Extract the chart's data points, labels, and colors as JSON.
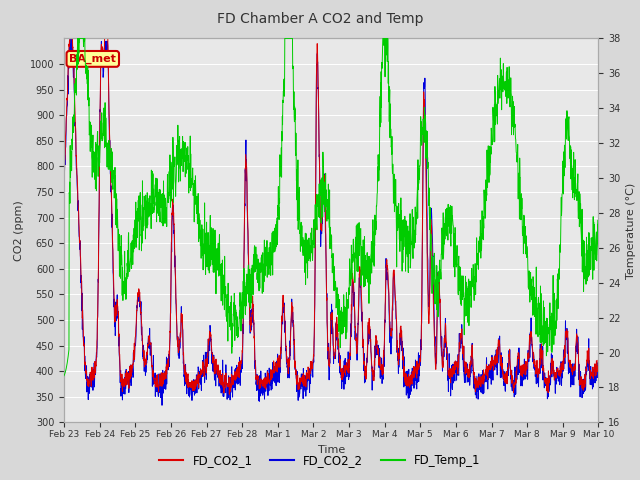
{
  "title": "FD Chamber A CO2 and Temp",
  "xlabel": "Time",
  "ylabel_left": "CO2 (ppm)",
  "ylabel_right": "Temperature (°C)",
  "ylim_left": [
    300,
    1050
  ],
  "ylim_right": [
    16,
    38
  ],
  "yticks_left": [
    300,
    350,
    400,
    450,
    500,
    550,
    600,
    650,
    700,
    750,
    800,
    850,
    900,
    950,
    1000
  ],
  "yticks_right": [
    16,
    18,
    20,
    22,
    24,
    26,
    28,
    30,
    32,
    34,
    36,
    38
  ],
  "bg_color": "#d8d8d8",
  "plot_bg_color": "#e8e8e8",
  "color_co2_1": "#dd0000",
  "color_co2_2": "#0000dd",
  "color_temp": "#00cc00",
  "annotation_text": "BA_met",
  "annotation_color": "#cc0000",
  "annotation_bg": "#ffff99",
  "legend_labels": [
    "FD_CO2_1",
    "FD_CO2_2",
    "FD_Temp_1"
  ],
  "legend_colors": [
    "#dd0000",
    "#0000dd",
    "#00cc00"
  ],
  "tick_labels": [
    "Feb 23",
    "Feb 24",
    "Feb 25",
    "Feb 26",
    "Feb 27",
    "Feb 28",
    "Mar 1",
    "Mar 2",
    "Mar 3",
    "Mar 4",
    "Mar 5",
    "Mar 6",
    "Mar 7",
    "Mar 8",
    "Mar 9",
    "Mar 10"
  ]
}
